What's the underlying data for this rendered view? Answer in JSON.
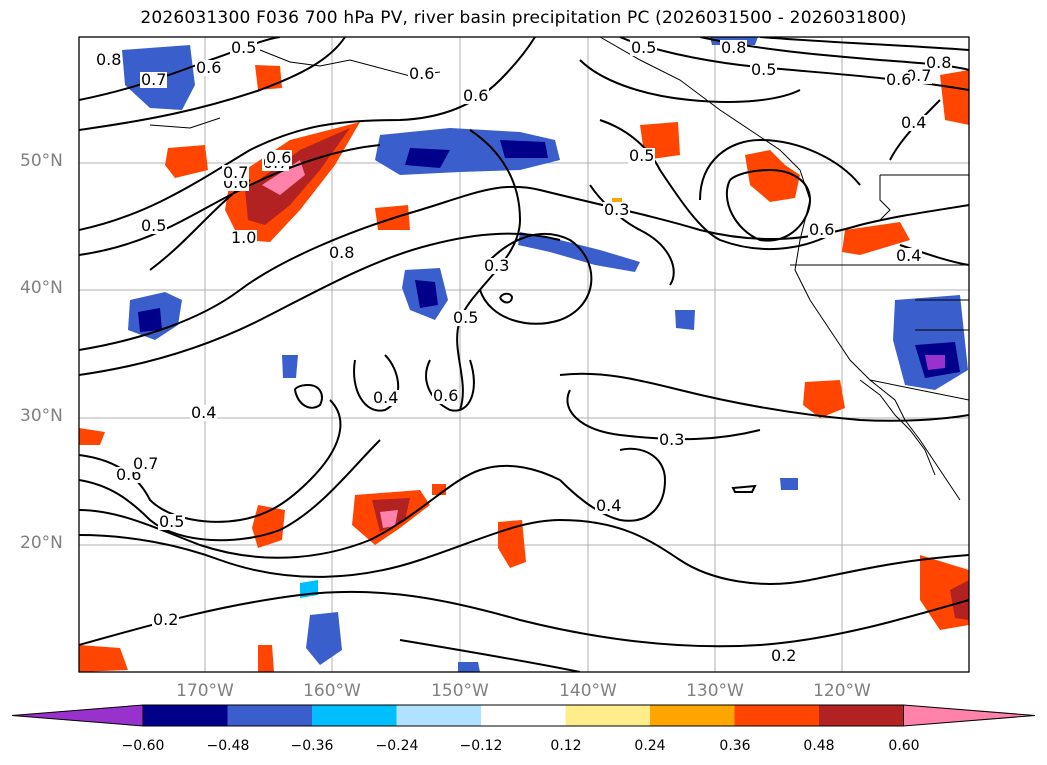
{
  "title": "2026031300 F036 700 hPa PV, river basin precipitation PC (2026031500 - 2026031800)",
  "map": {
    "lat_labels": [
      "50°N",
      "40°N",
      "30°N",
      "20°N"
    ],
    "lon_labels": [
      "170°W",
      "160°W",
      "150°W",
      "140°W",
      "130°W",
      "120°W"
    ],
    "contour_labels": [
      "0.8",
      "0.7",
      "0.6",
      "0.5",
      "0.6",
      "0.7",
      "0.5",
      "1.0",
      "0.8",
      "0.6",
      "0.5",
      "0.3",
      "0.3",
      "0.5",
      "0.6",
      "0.4",
      "0.6",
      "0.4",
      "0.3",
      "0.4",
      "0.6",
      "0.7",
      "0.5",
      "0.2",
      "0.2",
      "0.8",
      "0.5",
      "0.7",
      "0.6",
      "0.6",
      "0.8",
      "0.4",
      "0.4",
      "0.7",
      "0.6",
      "0.5"
    ]
  },
  "colorbar": {
    "ticks": [
      "−0.60",
      "−0.48",
      "−0.36",
      "−0.24",
      "−0.12",
      "0.12",
      "0.24",
      "0.36",
      "0.48",
      "0.60"
    ],
    "colors": [
      "#9932cc",
      "#00008b",
      "#3a5fcd",
      "#00bfff",
      "#b0e2ff",
      "#ffffff",
      "#ffec8b",
      "#ffa500",
      "#ff4500",
      "#b22222",
      "#ff82ab"
    ]
  }
}
